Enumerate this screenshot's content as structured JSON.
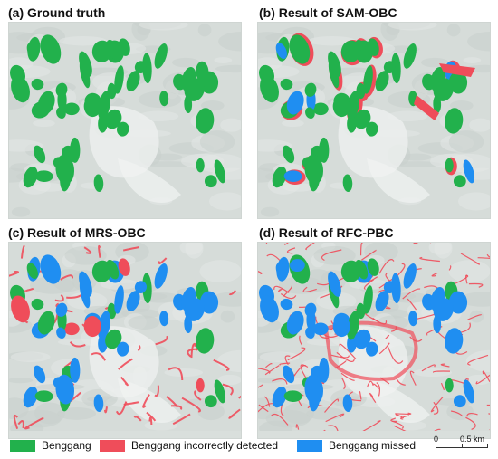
{
  "panels": [
    {
      "title": "(a) Ground truth"
    },
    {
      "title": "(b) Result of SAM-OBC"
    },
    {
      "title": "(c) Result of MRS-OBC"
    },
    {
      "title": "(d) Result of RFC-PBC"
    }
  ],
  "legend": [
    {
      "label": "Benggang",
      "color": "#22b14c"
    },
    {
      "label": "Benggang incorrectly detected",
      "color": "#ef4d5a"
    },
    {
      "label": "Benggang missed",
      "color": "#1f8ef1"
    }
  ],
  "scalebar": {
    "left_label": "0",
    "right_label": "0.5 km"
  },
  "colors": {
    "background_imagery": "#d9dfdc"
  }
}
